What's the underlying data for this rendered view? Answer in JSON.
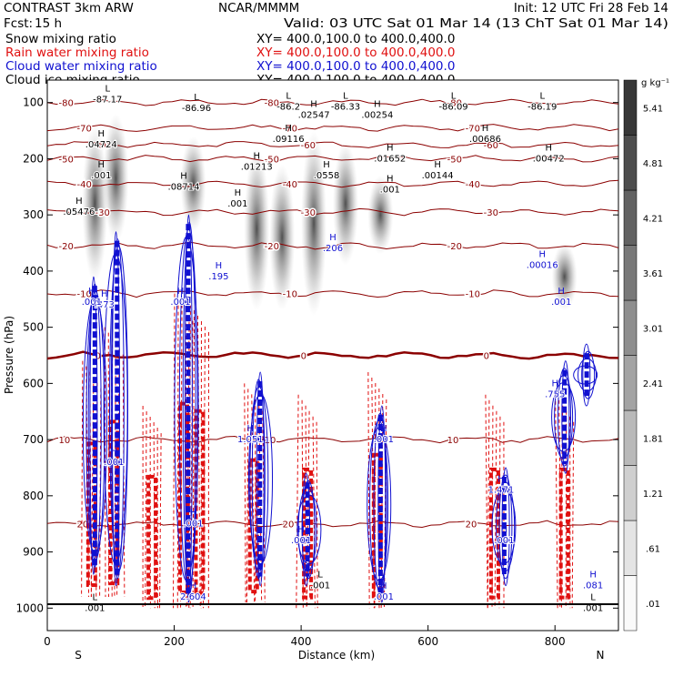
{
  "header": {
    "model": "CONTRAST   3km ARW",
    "institution": "NCAR/MMMM",
    "init": "Init: 12 UTC Fri 28 Feb 14",
    "fcst_label": "Fcst:",
    "fcst_value": "15 h",
    "valid": "Valid: 03 UTC Sat 01 Mar 14 (13 ChT Sat 01 Mar 14)"
  },
  "legend": [
    {
      "name": "Snow mixing ratio",
      "xy": "XY= 400.0,100.0 to 400.0,400.0",
      "color": "#000000"
    },
    {
      "name": "Rain water mixing ratio",
      "xy": "XY= 400.0,100.0 to 400.0,400.0",
      "color": "#e01010"
    },
    {
      "name": "Cloud water mixing ratio",
      "xy": "XY= 400.0,100.0 to 400.0,400.0",
      "color": "#1010d0"
    },
    {
      "name": "Cloud ice mixing ratio",
      "xy": "XY= 400.0,100.0 to 400.0,400.0",
      "color": "#000000"
    }
  ],
  "chart_data": {
    "type": "heatmap",
    "xlabel": "Distance (km)",
    "ylabel": "Pressure (hPa)",
    "xlim": [
      0,
      900
    ],
    "ylim": [
      1040,
      60
    ],
    "x_ticks": [
      0,
      200,
      400,
      600,
      800
    ],
    "y_ticks": [
      100,
      200,
      300,
      400,
      500,
      600,
      700,
      800,
      900,
      1000
    ],
    "x_end_labels": {
      "left": "S",
      "right": "N"
    },
    "colorbar": {
      "units": "g kg⁻¹",
      "ticks": [
        ".01",
        ".61",
        "1.21",
        "1.81",
        "2.41",
        "3.01",
        "3.61",
        "4.21",
        "4.81",
        "5.41"
      ]
    },
    "snow_columns": [
      {
        "x": 75,
        "p_top": 140,
        "p_bottom": 420
      },
      {
        "x": 108,
        "p_top": 120,
        "p_bottom": 350
      },
      {
        "x": 230,
        "p_top": 160,
        "p_bottom": 330
      },
      {
        "x": 330,
        "p_top": 180,
        "p_bottom": 470
      },
      {
        "x": 370,
        "p_top": 210,
        "p_bottom": 470
      },
      {
        "x": 420,
        "p_top": 150,
        "p_bottom": 480
      },
      {
        "x": 470,
        "p_top": 170,
        "p_bottom": 390
      },
      {
        "x": 525,
        "p_top": 230,
        "p_bottom": 370
      },
      {
        "x": 815,
        "p_top": 350,
        "p_bottom": 470
      }
    ],
    "rain_columns": [
      {
        "x": 70,
        "p_top": 560,
        "p_bottom": 980
      },
      {
        "x": 105,
        "p_top": 500,
        "p_bottom": 980
      },
      {
        "x": 165,
        "p_top": 640,
        "p_bottom": 1000
      },
      {
        "x": 215,
        "p_top": 440,
        "p_bottom": 1000
      },
      {
        "x": 240,
        "p_top": 460,
        "p_bottom": 1000
      },
      {
        "x": 325,
        "p_top": 600,
        "p_bottom": 990
      },
      {
        "x": 410,
        "p_top": 620,
        "p_bottom": 1000
      },
      {
        "x": 520,
        "p_top": 580,
        "p_bottom": 1000
      },
      {
        "x": 705,
        "p_top": 620,
        "p_bottom": 1000
      },
      {
        "x": 815,
        "p_top": 620,
        "p_bottom": 1000
      }
    ],
    "cloud_water_columns": [
      {
        "x": 75,
        "p_top": 410,
        "p_bottom": 940
      },
      {
        "x": 110,
        "p_top": 330,
        "p_bottom": 960
      },
      {
        "x": 222,
        "p_top": 300,
        "p_bottom": 990
      },
      {
        "x": 335,
        "p_top": 580,
        "p_bottom": 960
      },
      {
        "x": 410,
        "p_top": 760,
        "p_bottom": 960
      },
      {
        "x": 525,
        "p_top": 640,
        "p_bottom": 990
      },
      {
        "x": 720,
        "p_top": 750,
        "p_bottom": 960
      },
      {
        "x": 815,
        "p_top": 560,
        "p_bottom": 760
      },
      {
        "x": 850,
        "p_top": 530,
        "p_bottom": 640
      }
    ],
    "temperature_contours": [
      {
        "label": "-80",
        "p": 100
      },
      {
        "label": "-70",
        "p": 145
      },
      {
        "label": "-60",
        "p": 175
      },
      {
        "label": "-50",
        "p": 200
      },
      {
        "label": "-40",
        "p": 245
      },
      {
        "label": "-30",
        "p": 295
      },
      {
        "label": "-20",
        "p": 355
      },
      {
        "label": "-10",
        "p": 440
      },
      {
        "label": "0",
        "p": 550
      },
      {
        "label": "10",
        "p": 700
      },
      {
        "label": "20",
        "p": 850
      }
    ],
    "extrema_labels": [
      {
        "kind": "L",
        "text": "-87.17",
        "x": 95,
        "p": 95
      },
      {
        "kind": "L",
        "text": "-86.96",
        "x": 235,
        "p": 110
      },
      {
        "kind": "L",
        "text": "-86.2",
        "x": 380,
        "p": 108
      },
      {
        "kind": "L",
        "text": "-86.33",
        "x": 470,
        "p": 108
      },
      {
        "kind": "L",
        "text": "-86.09",
        "x": 640,
        "p": 108
      },
      {
        "kind": "L",
        "text": "-86.19",
        "x": 780,
        "p": 108
      },
      {
        "kind": "H",
        "text": ".04724",
        "x": 85,
        "p": 175
      },
      {
        "kind": "H",
        "text": ".001",
        "x": 85,
        "p": 230
      },
      {
        "kind": "H",
        "text": ".05476",
        "x": 50,
        "p": 295
      },
      {
        "kind": "H",
        "text": ".08714",
        "x": 215,
        "p": 250
      },
      {
        "kind": "H",
        "text": ".001",
        "x": 300,
        "p": 280
      },
      {
        "kind": "H",
        "text": ".01213",
        "x": 330,
        "p": 215
      },
      {
        "kind": "H",
        "text": ".09116",
        "x": 380,
        "p": 165
      },
      {
        "kind": "H",
        "text": ".02547",
        "x": 420,
        "p": 122
      },
      {
        "kind": "H",
        "text": ".00254",
        "x": 520,
        "p": 122
      },
      {
        "kind": "H",
        "text": ".0558",
        "x": 440,
        "p": 230
      },
      {
        "kind": "H",
        "text": ".01652",
        "x": 540,
        "p": 200
      },
      {
        "kind": "H",
        "text": ".001",
        "x": 540,
        "p": 255
      },
      {
        "kind": "H",
        "text": ".00144",
        "x": 615,
        "p": 230
      },
      {
        "kind": "H",
        "text": ".00686",
        "x": 690,
        "p": 165
      },
      {
        "kind": "H",
        "text": ".00472",
        "x": 790,
        "p": 200
      },
      {
        "kind": "H",
        "text": ".00016",
        "x": 780,
        "p": 390
      },
      {
        "kind": "H",
        "text": ".206",
        "x": 450,
        "p": 360
      },
      {
        "kind": "H",
        "text": ".195",
        "x": 270,
        "p": 410
      },
      {
        "kind": "H",
        "text": ".473",
        "x": 90,
        "p": 460
      },
      {
        "kind": "H",
        "text": ".001",
        "x": 70,
        "p": 455
      },
      {
        "kind": "H",
        "text": ".001",
        "x": 210,
        "p": 455
      },
      {
        "kind": "H",
        "text": ".001",
        "x": 810,
        "p": 455
      },
      {
        "kind": "H",
        "text": ".755",
        "x": 800,
        "p": 620
      },
      {
        "kind": "H",
        "text": "1.471",
        "x": 715,
        "p": 790
      },
      {
        "kind": "H",
        "text": "1.051",
        "x": 320,
        "p": 700
      },
      {
        "kind": "H",
        "text": ".001",
        "x": 105,
        "p": 740
      },
      {
        "kind": "H",
        "text": ".001",
        "x": 230,
        "p": 850
      },
      {
        "kind": "H",
        "text": ".001",
        "x": 400,
        "p": 880
      },
      {
        "kind": "H",
        "text": ".001",
        "x": 530,
        "p": 700
      },
      {
        "kind": "H",
        "text": ".001",
        "x": 720,
        "p": 880
      },
      {
        "kind": "H",
        "text": ".081",
        "x": 860,
        "p": 960
      },
      {
        "kind": "L",
        "text": ".001",
        "x": 75,
        "p": 1000
      },
      {
        "kind": "L",
        "text": ".001",
        "x": 430,
        "p": 960
      },
      {
        "kind": "L",
        "text": ".001",
        "x": 860,
        "p": 1000
      },
      {
        "kind": "H",
        "text": "2.604",
        "x": 230,
        "p": 980
      },
      {
        "kind": "H",
        "text": ".001",
        "x": 530,
        "p": 980
      }
    ]
  }
}
